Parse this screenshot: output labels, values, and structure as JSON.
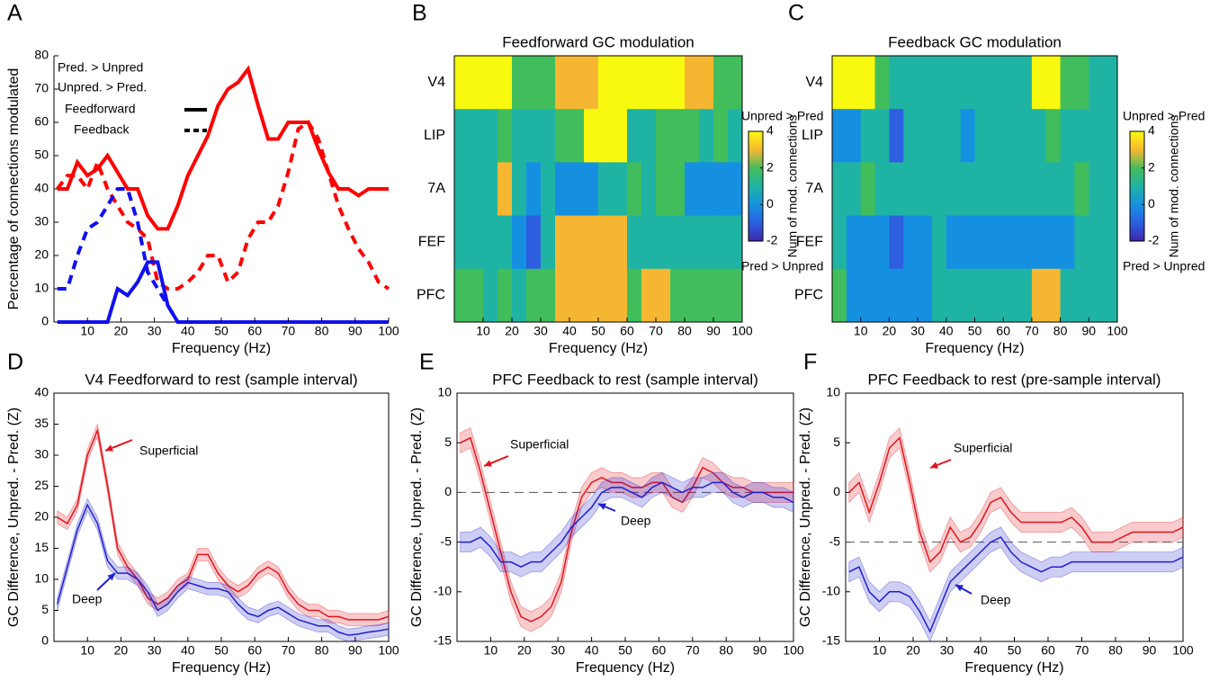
{
  "chart_data": [
    {
      "panel": "A",
      "type": "line",
      "ylabel": "Percentage of connections modulated",
      "xlabel": "Frequency (Hz)",
      "x": [
        1,
        4,
        7,
        10,
        13,
        16,
        19,
        22,
        25,
        28,
        31,
        34,
        37,
        40,
        43,
        46,
        49,
        52,
        55,
        58,
        61,
        64,
        67,
        70,
        73,
        76,
        79,
        82,
        85,
        88,
        91,
        94,
        97,
        100
      ],
      "xlim": [
        0,
        100
      ],
      "xticks": [
        10,
        20,
        30,
        40,
        50,
        60,
        70,
        80,
        90,
        100
      ],
      "ylim": [
        0,
        80
      ],
      "yticks": [
        0,
        10,
        20,
        30,
        40,
        50,
        60,
        70,
        80
      ],
      "legend": {
        "colors": [
          {
            "label": "Pred. > Unpred",
            "color": "#1010f0"
          },
          {
            "label": "Unpred. > Pred.",
            "color": "#ff0000"
          }
        ],
        "styles": [
          {
            "label": "Feedforward",
            "dash": "solid"
          },
          {
            "label": "Feedback",
            "dash": "dashed"
          }
        ]
      },
      "series": [
        {
          "color": "#ff0000",
          "dash": "solid",
          "values": [
            40,
            40,
            48,
            44,
            46,
            50,
            45,
            40,
            40,
            32,
            28,
            28,
            35,
            44,
            50,
            56,
            65,
            70,
            72,
            76,
            65,
            55,
            55,
            60,
            60,
            60,
            52,
            45,
            40,
            40,
            38,
            40,
            40,
            40
          ]
        },
        {
          "color": "#ff0000",
          "dash": "dashed",
          "values": [
            40,
            44,
            44,
            40,
            48,
            40,
            35,
            30,
            28,
            25,
            12,
            10,
            10,
            12,
            15,
            20,
            20,
            12,
            15,
            25,
            30,
            30,
            35,
            45,
            58,
            60,
            55,
            45,
            35,
            28,
            22,
            18,
            12,
            10
          ]
        },
        {
          "color": "#1010f0",
          "dash": "solid",
          "values": [
            0,
            0,
            0,
            0,
            0,
            0,
            10,
            8,
            12,
            18,
            18,
            5,
            0,
            0,
            0,
            0,
            0,
            0,
            0,
            0,
            0,
            0,
            0,
            0,
            0,
            0,
            0,
            0,
            0,
            0,
            0,
            0,
            0,
            0
          ]
        },
        {
          "color": "#1010f0",
          "dash": "dashed",
          "values": [
            10,
            10,
            20,
            28,
            30,
            35,
            40,
            40,
            30,
            15,
            10,
            5,
            0,
            null,
            null,
            null,
            null,
            null,
            null,
            null,
            null,
            null,
            null,
            null,
            null,
            null,
            null,
            null,
            null,
            null,
            null,
            null,
            null,
            null
          ]
        }
      ]
    },
    {
      "panel": "B",
      "type": "heatmap",
      "title": "Feedforward GC modulation",
      "xlabel": "Frequency (Hz)",
      "rows": [
        "V4",
        "LIP",
        "7A",
        "FEF",
        "PFC"
      ],
      "bins": [
        0,
        5,
        10,
        15,
        20,
        25,
        30,
        35,
        40,
        45,
        50,
        55,
        60,
        65,
        70,
        75,
        80,
        85,
        90,
        95,
        100
      ],
      "xlim": [
        0,
        100
      ],
      "xticks": [
        10,
        20,
        30,
        40,
        50,
        60,
        70,
        80,
        90,
        100
      ],
      "clim": [
        -2,
        4
      ],
      "cticks": [
        -2,
        0,
        2,
        4
      ],
      "colorbar_label": "Num of mod. connections",
      "colorbar_top": "Unpred > Pred",
      "colorbar_bottom": "Pred > Unpred",
      "values": [
        [
          4,
          4,
          4,
          4,
          2,
          2,
          2,
          3,
          3,
          3,
          4,
          4,
          4,
          4,
          4,
          4,
          3,
          3,
          2,
          2
        ],
        [
          1,
          1,
          1,
          2,
          1,
          1,
          1,
          2,
          2,
          4,
          4,
          4,
          1,
          1,
          2,
          2,
          2,
          1,
          2,
          1
        ],
        [
          1,
          1,
          1,
          3,
          1,
          0,
          1,
          0,
          0,
          0,
          1,
          1,
          2,
          1,
          2,
          2,
          0,
          0,
          0,
          0
        ],
        [
          1,
          1,
          1,
          1,
          0,
          -1,
          1,
          3,
          3,
          3,
          3,
          3,
          1,
          1,
          1,
          1,
          1,
          1,
          1,
          1
        ],
        [
          2,
          2,
          1,
          2,
          1,
          2,
          2,
          3,
          3,
          3,
          3,
          3,
          2,
          3,
          3,
          2,
          2,
          2,
          2,
          2
        ]
      ]
    },
    {
      "panel": "C",
      "type": "heatmap",
      "title": "Feedback GC modulation",
      "xlabel": "Frequency (Hz)",
      "rows": [
        "V4",
        "LIP",
        "7A",
        "FEF",
        "PFC"
      ],
      "bins": [
        0,
        5,
        10,
        15,
        20,
        25,
        30,
        35,
        40,
        45,
        50,
        55,
        60,
        65,
        70,
        75,
        80,
        85,
        90,
        95,
        100
      ],
      "xlim": [
        0,
        100
      ],
      "xticks": [
        10,
        20,
        30,
        40,
        50,
        60,
        70,
        80,
        90,
        100
      ],
      "clim": [
        -2,
        4
      ],
      "cticks": [
        -2,
        0,
        2,
        4
      ],
      "colorbar_label": "Num of mod. connections",
      "colorbar_top": "Unpred > Pred",
      "colorbar_bottom": "Pred > Unpred",
      "values": [
        [
          4,
          4,
          4,
          2,
          1,
          1,
          1,
          1,
          1,
          1,
          1,
          1,
          1,
          1,
          4,
          4,
          2,
          2,
          1,
          1
        ],
        [
          0,
          0,
          1,
          1,
          -1,
          1,
          1,
          1,
          1,
          0,
          1,
          1,
          1,
          1,
          1,
          2,
          1,
          1,
          1,
          1
        ],
        [
          1,
          1,
          2,
          1,
          1,
          1,
          1,
          1,
          1,
          1,
          1,
          1,
          1,
          1,
          1,
          1,
          1,
          2,
          1,
          1
        ],
        [
          1,
          0,
          0,
          0,
          -1,
          0,
          0,
          1,
          0,
          0,
          0,
          0,
          0,
          0,
          0,
          0,
          0,
          1,
          1,
          1
        ],
        [
          2,
          0,
          0,
          0,
          0,
          0,
          0,
          1,
          1,
          1,
          1,
          1,
          1,
          1,
          3,
          3,
          1,
          1,
          1,
          1
        ]
      ]
    },
    {
      "panel": "D",
      "type": "line",
      "box": true,
      "title": "V4 Feedforward to rest (sample interval)",
      "xlabel": "Frequency (Hz)",
      "ylabel": "GC Difference, Unpred. - Pred. (Z)",
      "x": [
        1,
        4,
        7,
        10,
        13,
        16,
        19,
        22,
        25,
        28,
        31,
        34,
        37,
        40,
        43,
        46,
        49,
        52,
        55,
        58,
        61,
        64,
        67,
        70,
        73,
        76,
        79,
        82,
        85,
        88,
        91,
        94,
        97,
        100
      ],
      "xlim": [
        0,
        100
      ],
      "xticks": [
        10,
        20,
        30,
        40,
        50,
        60,
        70,
        80,
        90,
        100
      ],
      "ylim": [
        0,
        40
      ],
      "yticks": [
        0,
        5,
        10,
        15,
        20,
        25,
        30,
        35,
        40
      ],
      "series": [
        {
          "name": "Superficial",
          "color": "#e3141c",
          "error": 1,
          "values": [
            20,
            19,
            22,
            30,
            34,
            25,
            15,
            12,
            10,
            7,
            6,
            7,
            9,
            10,
            14,
            14,
            11,
            9,
            8,
            9,
            11,
            12,
            11,
            8,
            6,
            5,
            5,
            4,
            4,
            3.5,
            3.5,
            3.5,
            3.5,
            4
          ]
        },
        {
          "name": "Deep",
          "color": "#2020d0",
          "error": 1,
          "values": [
            6,
            12,
            18,
            22,
            19,
            13,
            11,
            11,
            10,
            8,
            5,
            6,
            8,
            9.5,
            9,
            8.5,
            8.5,
            8,
            6,
            4.5,
            4,
            5,
            5.5,
            4.5,
            3.5,
            3,
            2.5,
            2.5,
            1.5,
            1,
            1.2,
            1.5,
            1.7,
            2
          ]
        }
      ]
    },
    {
      "panel": "E",
      "type": "line",
      "box": true,
      "title": "PFC Feedback to rest (sample interval)",
      "xlabel": "Frequency (Hz)",
      "ylabel": "GC Difference, Unpred. - Pred. (Z)",
      "x": [
        1,
        4,
        7,
        10,
        13,
        16,
        19,
        22,
        25,
        28,
        31,
        34,
        37,
        40,
        43,
        46,
        49,
        52,
        55,
        58,
        61,
        64,
        67,
        70,
        73,
        76,
        79,
        82,
        85,
        88,
        91,
        94,
        97,
        100
      ],
      "xlim": [
        0,
        100
      ],
      "xticks": [
        10,
        20,
        30,
        40,
        50,
        60,
        70,
        80,
        90,
        100
      ],
      "ylim": [
        -15,
        10
      ],
      "yticks": [
        -15,
        -10,
        -5,
        0,
        5,
        10
      ],
      "hline": 0,
      "series": [
        {
          "name": "Superficial",
          "color": "#e3141c",
          "error": 1,
          "values": [
            5,
            5.5,
            2,
            -2,
            -6,
            -10,
            -12.5,
            -13,
            -12.5,
            -11.5,
            -9,
            -4,
            -0.5,
            1,
            1.5,
            1,
            1,
            0.5,
            0.5,
            1,
            1,
            -0.5,
            -1,
            0.5,
            2.5,
            2,
            1,
            0.5,
            0.5,
            0,
            0,
            0,
            0,
            0
          ]
        },
        {
          "name": "Deep",
          "color": "#2020d0",
          "error": 1,
          "values": [
            -5,
            -5,
            -4.5,
            -5.5,
            -7,
            -7,
            -7.5,
            -7,
            -7,
            -6,
            -5,
            -3.5,
            -2.5,
            -1.5,
            0,
            0.5,
            0.5,
            0,
            -0.5,
            0.5,
            1,
            0.5,
            0,
            0.5,
            0.5,
            1,
            1,
            0,
            -0.5,
            0,
            0,
            -0.5,
            -0.5,
            -1
          ]
        }
      ]
    },
    {
      "panel": "F",
      "type": "line",
      "box": true,
      "title": "PFC Feedback to rest (pre-sample interval)",
      "xlabel": "Frequency (Hz)",
      "ylabel": "GC Difference, Unpred. - Pred. (Z)",
      "x": [
        1,
        4,
        7,
        10,
        13,
        16,
        19,
        22,
        25,
        28,
        31,
        34,
        37,
        40,
        43,
        46,
        49,
        52,
        55,
        58,
        61,
        64,
        67,
        70,
        73,
        76,
        79,
        82,
        85,
        88,
        91,
        94,
        97,
        100
      ],
      "xlim": [
        0,
        100
      ],
      "xticks": [
        10,
        20,
        30,
        40,
        50,
        60,
        70,
        80,
        90,
        100
      ],
      "ylim": [
        -15,
        10
      ],
      "yticks": [
        -15,
        -10,
        -5,
        0,
        5,
        10
      ],
      "hline": -5,
      "series": [
        {
          "name": "Superficial",
          "color": "#e3141c",
          "error": 1,
          "values": [
            0,
            1,
            -2,
            1,
            4.5,
            5.5,
            1,
            -4,
            -7,
            -6,
            -3.5,
            -5,
            -4.5,
            -3,
            -1,
            -0.5,
            -2,
            -3,
            -3,
            -3,
            -3,
            -3,
            -2.5,
            -3.5,
            -5,
            -5,
            -5,
            -4.5,
            -4,
            -4,
            -4,
            -4,
            -4,
            -3.5
          ]
        },
        {
          "name": "Deep",
          "color": "#2020d0",
          "error": 1,
          "values": [
            -8,
            -7.5,
            -10,
            -11,
            -10,
            -10,
            -10.5,
            -12,
            -14,
            -11.5,
            -9,
            -8,
            -7,
            -6,
            -5,
            -4.5,
            -6,
            -7,
            -7.5,
            -8,
            -7.5,
            -7.5,
            -7,
            -7,
            -7,
            -7,
            -7,
            -7,
            -7,
            -7,
            -7,
            -7,
            -7,
            -6.5
          ]
        }
      ]
    }
  ]
}
